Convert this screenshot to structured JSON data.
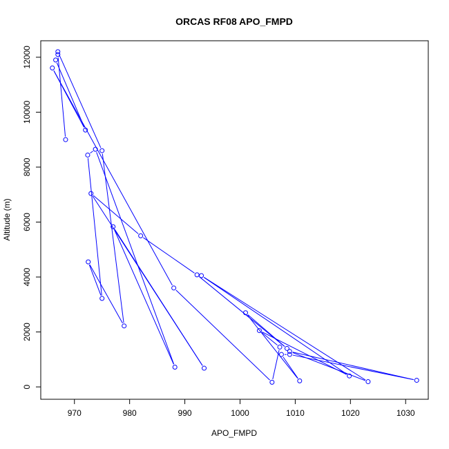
{
  "chart_data": {
    "type": "line",
    "title": "ORCAS RF08 APO_FMPD",
    "xlabel": "APO_FMPD",
    "ylabel": "Altitude (m)",
    "xlim": [
      963.9,
      1034.1
    ],
    "ylim": [
      -450,
      12600
    ],
    "x_ticks": [
      970,
      980,
      990,
      1000,
      1010,
      1020,
      1030
    ],
    "y_ticks": [
      0,
      2000,
      4000,
      6000,
      8000,
      10000,
      12000
    ],
    "grid": false,
    "legend": "none",
    "series": [
      {
        "color": "#0000ff",
        "points": [
          [
            967.0,
            12200
          ],
          [
            975.0,
            8600
          ],
          [
            979.0,
            2220
          ],
          [
            972.5,
            4550
          ],
          [
            975.0,
            3220
          ],
          [
            972.4,
            8440
          ],
          [
            973.8,
            8650
          ],
          [
            988.2,
            720
          ],
          [
            977.0,
            5830
          ],
          [
            993.5,
            680
          ],
          [
            973.0,
            7040
          ],
          [
            982.0,
            5500
          ],
          [
            992.2,
            4080
          ],
          [
            1008.5,
            1400
          ],
          [
            1001.0,
            2700
          ],
          [
            1010.8,
            220
          ],
          [
            1007.5,
            1180
          ],
          [
            1009.0,
            1180
          ],
          [
            1032.0,
            240
          ],
          [
            1009.0,
            1290
          ],
          [
            1023.2,
            190
          ],
          [
            993.0,
            4050
          ],
          [
            1019.8,
            400
          ],
          [
            1003.5,
            2050
          ],
          [
            1007.2,
            1450
          ],
          [
            1005.8,
            170
          ],
          [
            988.0,
            3600
          ],
          [
            966.0,
            11610
          ],
          [
            972.0,
            9350
          ],
          [
            966.6,
            11900
          ],
          [
            967.0,
            12100
          ],
          [
            968.4,
            9000
          ]
        ]
      }
    ]
  }
}
